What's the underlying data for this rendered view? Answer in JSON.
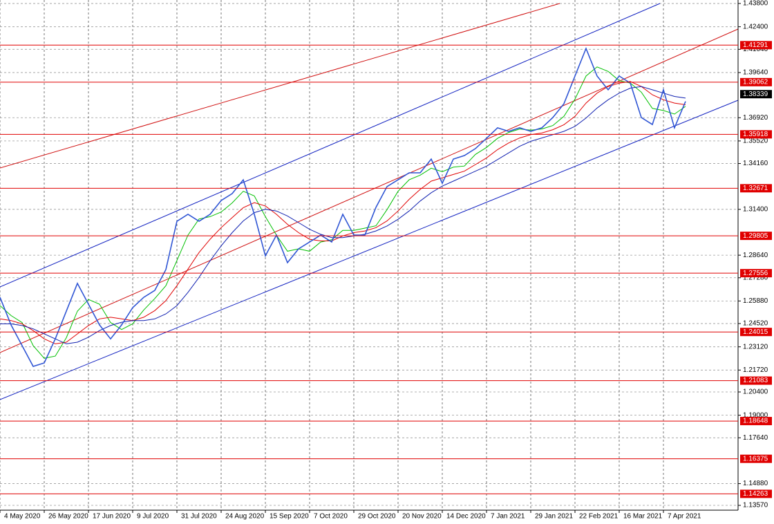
{
  "chart_data": {
    "type": "line",
    "x": [
      0,
      4,
      8,
      12,
      16,
      20,
      24,
      28,
      32,
      36,
      40,
      44,
      48,
      52,
      56,
      60,
      64,
      68,
      72,
      76,
      80,
      84,
      88,
      92,
      96,
      100,
      104,
      108,
      112,
      116,
      120,
      124,
      128,
      132,
      136,
      140,
      144,
      148,
      152,
      156,
      160,
      164,
      168,
      172,
      176,
      180,
      184,
      188,
      192,
      196,
      200,
      204,
      208,
      212,
      216,
      220,
      224,
      228,
      232,
      236,
      240,
      244,
      248
    ],
    "series": [
      {
        "color": "#2f55d4",
        "values": [
          1.261,
          1.2444,
          1.2319,
          1.2194,
          1.2215,
          1.236,
          1.2527,
          1.2694,
          1.2569,
          1.2444,
          1.236,
          1.2444,
          1.2548,
          1.261,
          1.2652,
          1.2777,
          1.3068,
          1.311,
          1.3068,
          1.311,
          1.3193,
          1.3235,
          1.3318,
          1.311,
          1.286,
          1.2985,
          1.2819,
          1.2902,
          1.2943,
          1.2985,
          1.2943,
          1.311,
          1.2985,
          1.2985,
          1.3152,
          1.3277,
          1.3318,
          1.336,
          1.336,
          1.3443,
          1.3297,
          1.3443,
          1.3464,
          1.3506,
          1.3568,
          1.3631,
          1.361,
          1.3631,
          1.361,
          1.3631,
          1.3693,
          1.3776,
          1.3943,
          1.4109,
          1.3943,
          1.386,
          1.3943,
          1.3901,
          1.3693,
          1.3651,
          1.386,
          1.3631,
          1.379
        ]
      },
      {
        "color": "#00c000",
        "values": [
          1.256,
          1.25,
          1.2458,
          1.2319,
          1.2243,
          1.2256,
          1.2367,
          1.2527,
          1.2597,
          1.2569,
          1.2458,
          1.2416,
          1.2451,
          1.2534,
          1.2603,
          1.268,
          1.2832,
          1.2985,
          1.3082,
          1.3096,
          1.3124,
          1.3179,
          1.3249,
          1.3221,
          1.3096,
          1.2985,
          1.2888,
          1.2902,
          1.2888,
          1.2943,
          1.2957,
          1.3013,
          1.3013,
          1.3027,
          1.3041,
          1.3138,
          1.3249,
          1.3318,
          1.3346,
          1.3388,
          1.3367,
          1.3394,
          1.3401,
          1.3471,
          1.3513,
          1.3568,
          1.3603,
          1.3624,
          1.3617,
          1.3624,
          1.3645,
          1.37,
          1.3804,
          1.3943,
          1.3998,
          1.3971,
          1.3915,
          1.3901,
          1.3846,
          1.3748,
          1.3735,
          1.3714,
          1.376
        ]
      },
      {
        "color": "#e00000",
        "values": [
          1.248,
          1.247,
          1.245,
          1.241,
          1.236,
          1.233,
          1.234,
          1.239,
          1.244,
          1.248,
          1.249,
          1.248,
          1.247,
          1.249,
          1.253,
          1.259,
          1.268,
          1.278,
          1.288,
          1.296,
          1.303,
          1.309,
          1.315,
          1.318,
          1.316,
          1.311,
          1.305,
          1.3,
          1.296,
          1.295,
          1.295,
          1.298,
          1.3,
          1.301,
          1.303,
          1.307,
          1.313,
          1.32,
          1.326,
          1.331,
          1.333,
          1.335,
          1.337,
          1.341,
          1.345,
          1.35,
          1.354,
          1.357,
          1.359,
          1.36,
          1.362,
          1.365,
          1.37,
          1.378,
          1.384,
          1.388,
          1.39,
          1.391,
          1.388,
          1.383,
          1.38,
          1.378,
          1.377
        ]
      },
      {
        "color": "#1020b0",
        "values": [
          1.245,
          1.245,
          1.244,
          1.242,
          1.239,
          1.236,
          1.233,
          1.234,
          1.237,
          1.241,
          1.244,
          1.246,
          1.247,
          1.247,
          1.248,
          1.251,
          1.256,
          1.264,
          1.273,
          1.283,
          1.292,
          1.3,
          1.307,
          1.312,
          1.314,
          1.313,
          1.31,
          1.306,
          1.302,
          1.299,
          1.297,
          1.297,
          1.298,
          1.299,
          1.301,
          1.304,
          1.308,
          1.313,
          1.319,
          1.324,
          1.328,
          1.331,
          1.334,
          1.337,
          1.34,
          1.344,
          1.348,
          1.352,
          1.355,
          1.357,
          1.359,
          1.361,
          1.364,
          1.369,
          1.375,
          1.38,
          1.384,
          1.387,
          1.388,
          1.386,
          1.384,
          1.382,
          1.381
        ]
      }
    ],
    "xlim": [
      0,
      267
    ],
    "xticks": [
      {
        "value": 0,
        "label": "4 May 2020"
      },
      {
        "value": 16,
        "label": "26 May 2020"
      },
      {
        "value": 32,
        "label": "17 Jun 2020"
      },
      {
        "value": 48,
        "label": "9 Jul 2020"
      },
      {
        "value": 64,
        "label": "31 Jul 2020"
      },
      {
        "value": 80,
        "label": "24 Aug 2020"
      },
      {
        "value": 96,
        "label": "15 Sep 2020"
      },
      {
        "value": 112,
        "label": "7 Oct 2020"
      },
      {
        "value": 128,
        "label": "29 Oct 2020"
      },
      {
        "value": 144,
        "label": "20 Nov 2020"
      },
      {
        "value": 160,
        "label": "14 Dec 2020"
      },
      {
        "value": 176,
        "label": "7 Jan 2021"
      },
      {
        "value": 192,
        "label": "29 Jan 2021"
      },
      {
        "value": 208,
        "label": "22 Feb 2021"
      },
      {
        "value": 224,
        "label": "16 Mar 2021"
      },
      {
        "value": 240,
        "label": "7 Apr 2021"
      }
    ],
    "ylim": [
      1.1328,
      1.4401
    ],
    "yticks": [
      {
        "value": 1.438,
        "label": "1.43800"
      },
      {
        "value": 1.424,
        "label": "1.42400"
      },
      {
        "value": 1.4104,
        "label": "1.41040"
      },
      {
        "value": 1.3964,
        "label": "1.39640"
      },
      {
        "value": 1.3692,
        "label": "1.36920"
      },
      {
        "value": 1.3552,
        "label": "1.35520"
      },
      {
        "value": 1.3416,
        "label": "1.34160"
      },
      {
        "value": 1.314,
        "label": "1.31400"
      },
      {
        "value": 1.2864,
        "label": "1.28640"
      },
      {
        "value": 1.2728,
        "label": "1.27280"
      },
      {
        "value": 1.2588,
        "label": "1.25880"
      },
      {
        "value": 1.2452,
        "label": "1.24520"
      },
      {
        "value": 1.2312,
        "label": "1.23120"
      },
      {
        "value": 1.2172,
        "label": "1.21720"
      },
      {
        "value": 1.204,
        "label": "1.20400"
      },
      {
        "value": 1.19,
        "label": "1.19000"
      },
      {
        "value": 1.1764,
        "label": "1.17640"
      },
      {
        "value": 1.1488,
        "label": "1.14880"
      },
      {
        "value": 1.1357,
        "label": "1.13570"
      }
    ],
    "levels": [
      1.41291,
      1.39062,
      1.35918,
      1.32671,
      1.29805,
      1.27556,
      1.24015,
      1.21083,
      1.18648,
      1.16375,
      1.14263
    ],
    "level_color": "#e00000",
    "current_price": 1.38339,
    "grid": true
  }
}
